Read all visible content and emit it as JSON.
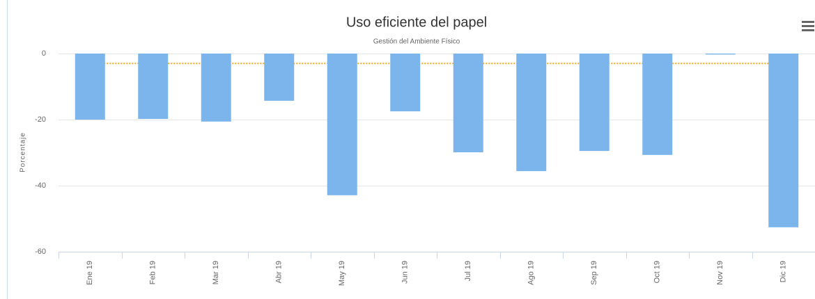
{
  "chart_data": {
    "type": "bar",
    "title": "Uso eficiente del papel",
    "subtitle": "Gestión del Ambiente Físico",
    "y_label": "Porcentaje",
    "categories": [
      "Ene 19",
      "Feb 19",
      "Mar 19",
      "Abr 19",
      "May 19",
      "Jun 19",
      "Jul 19",
      "Ago 19",
      "Sep 19",
      "Oct 19",
      "Nov 19",
      "Dic 19"
    ],
    "series": [
      {
        "type": "bar",
        "color": "#7cb5ec",
        "values": [
          -20.0,
          -19.8,
          -20.6,
          -14.3,
          -42.9,
          -17.5,
          -29.9,
          -35.6,
          -29.5,
          -30.7,
          -0.3,
          -52.6
        ]
      },
      {
        "type": "line",
        "color": "#f5a623",
        "values": [
          -3,
          -3,
          -3,
          -3,
          -3,
          -3,
          -3,
          -3,
          -3,
          -3,
          -3,
          -3
        ]
      }
    ],
    "ylim": [
      -60,
      0
    ],
    "yticks": [
      -60,
      -40,
      -20,
      0
    ],
    "grid": true
  }
}
